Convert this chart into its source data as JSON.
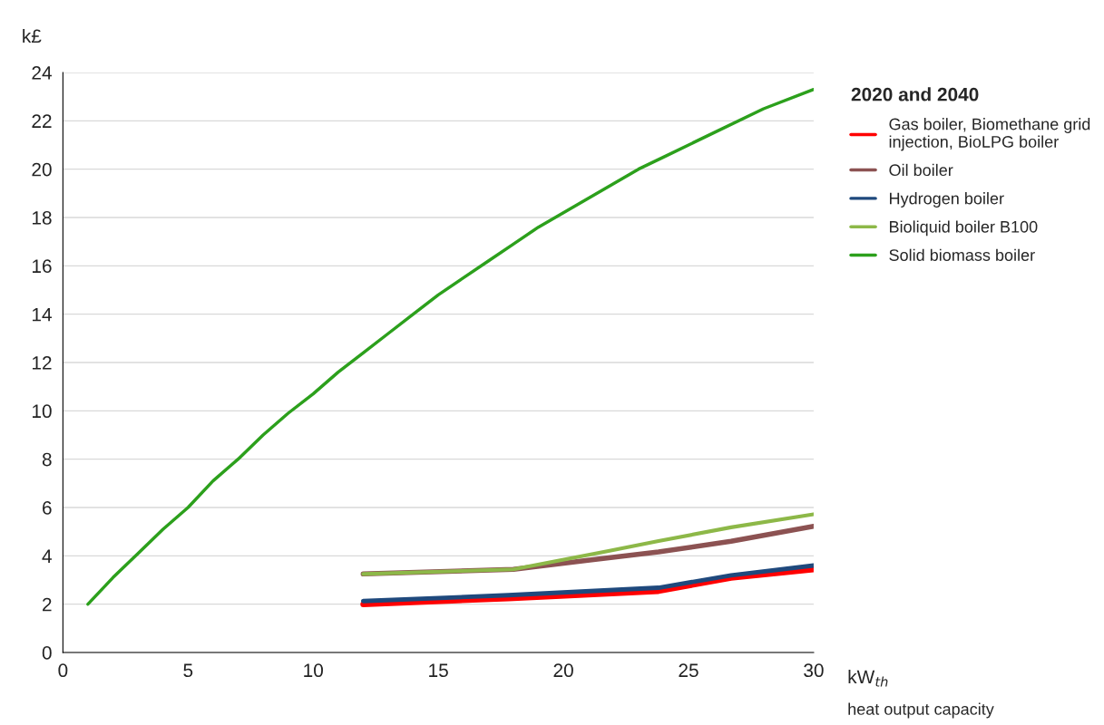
{
  "chart_data": {
    "type": "line",
    "ylabel": "k£",
    "xlabel": "kW$_{th}$",
    "legend_title": "2020 and 2040",
    "annotations": [
      "heat output capacity"
    ],
    "xlim": [
      0,
      30
    ],
    "xticks": [
      0,
      5,
      10,
      15,
      20,
      25,
      30
    ],
    "ylim": [
      0,
      24
    ],
    "yticks": [
      0,
      2,
      4,
      6,
      8,
      10,
      12,
      14,
      16,
      18,
      20,
      22,
      24
    ],
    "grid": "y",
    "legend": "right",
    "line_style": "solid",
    "series": [
      {
        "name": "Gas boiler, Biomethane grid\ninjection, BioLPG boiler",
        "color": "#ff0000",
        "x": [
          12,
          17.8,
          19.7,
          23.8,
          26.7,
          30
        ],
        "values": [
          1.99,
          2.24,
          2.33,
          2.54,
          3.09,
          3.44
        ]
      },
      {
        "name": "Oil boiler",
        "color": "#8c5252",
        "x": [
          12,
          18,
          20.9,
          23.8,
          26.7,
          30
        ],
        "values": [
          3.25,
          3.44,
          3.81,
          4.16,
          4.6,
          5.22
        ]
      },
      {
        "name": "Hydrogen boiler",
        "color": "#1f497d",
        "x": [
          12,
          17.8,
          23.8,
          26.7,
          30
        ],
        "values": [
          2.13,
          2.37,
          2.68,
          3.19,
          3.6
        ]
      },
      {
        "name": "Bioliquid boiler B100",
        "color": "#8db848",
        "x": [
          12,
          18,
          21.8,
          23.8,
          26.7,
          30
        ],
        "values": [
          3.25,
          3.44,
          4.2,
          4.61,
          5.18,
          5.72
        ]
      },
      {
        "name": "Solid biomass boiler",
        "color": "#2ca01c",
        "x": [
          1,
          2,
          3,
          4,
          5,
          6,
          7,
          8,
          9,
          10,
          11,
          12,
          13,
          14,
          15,
          16,
          17,
          18,
          19,
          20,
          22,
          23,
          24,
          26,
          28,
          30
        ],
        "values": [
          2.0,
          3.1,
          4.1,
          5.1,
          6.0,
          7.1,
          8.0,
          9.0,
          9.9,
          10.7,
          11.6,
          12.4,
          13.2,
          14.0,
          14.8,
          15.5,
          16.2,
          16.9,
          17.6,
          18.2,
          19.4,
          20.0,
          20.5,
          21.5,
          22.5,
          23.3
        ]
      }
    ]
  }
}
